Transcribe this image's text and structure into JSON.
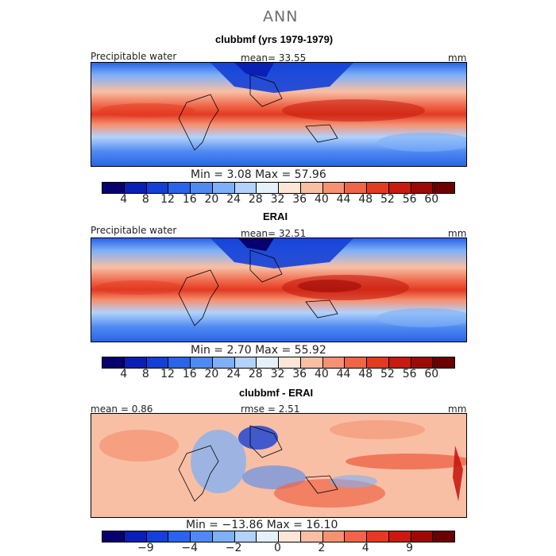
{
  "figure": {
    "title": "ANN"
  },
  "panels": [
    {
      "id": "model",
      "title": "clubbmf (yrs 1979-1979)",
      "left_label": "Precipitable water",
      "center_label": "mean=  33.55",
      "right_label": "mm",
      "stats": "Min =    3.08  Max =   57.96",
      "colorbar": {
        "colors": [
          "#08006e",
          "#0a1fb4",
          "#1440d6",
          "#2a64e8",
          "#4f8af2",
          "#7fb0f7",
          "#b2d2fb",
          "#e6f0fb",
          "#fde6d8",
          "#f8bfa5",
          "#f59272",
          "#ef6547",
          "#e33a22",
          "#c71b0f",
          "#9b0a05",
          "#6a0000"
        ],
        "tick_labels": [
          "4",
          "8",
          "12",
          "16",
          "20",
          "24",
          "28",
          "32",
          "36",
          "40",
          "44",
          "48",
          "52",
          "56",
          "60"
        ]
      }
    },
    {
      "id": "obs",
      "title": "ERAI",
      "left_label": "Precipitable water",
      "center_label": "mean=  32.51",
      "right_label": "mm",
      "stats": "Min =    2.70  Max =   55.92",
      "colorbar": {
        "colors": [
          "#08006e",
          "#0a1fb4",
          "#1440d6",
          "#2a64e8",
          "#4f8af2",
          "#7fb0f7",
          "#b2d2fb",
          "#e6f0fb",
          "#fde6d8",
          "#f8bfa5",
          "#f59272",
          "#ef6547",
          "#e33a22",
          "#c71b0f",
          "#9b0a05",
          "#6a0000"
        ],
        "tick_labels": [
          "4",
          "8",
          "12",
          "16",
          "20",
          "24",
          "28",
          "32",
          "36",
          "40",
          "44",
          "48",
          "52",
          "56",
          "60"
        ]
      }
    },
    {
      "id": "diff",
      "title": "clubbmf - ERAI",
      "left_label": "mean =   0.86",
      "center_label": "rmse =    2.51",
      "right_label": "mm",
      "stats": "Min = −13.86  Max =   16.10",
      "colorbar": {
        "colors": [
          "#08006e",
          "#0a1fb4",
          "#1440d6",
          "#2a64e8",
          "#4f8af2",
          "#7fb0f7",
          "#b2d2fb",
          "#e6f0fb",
          "#fde6d8",
          "#f8bfa5",
          "#f59272",
          "#ef6547",
          "#e33a22",
          "#c71b0f",
          "#9b0a05",
          "#6a0000"
        ],
        "tick_labels": [
          "−9",
          "−4",
          "−2",
          "0",
          "2",
          "4",
          "9"
        ]
      }
    }
  ]
}
